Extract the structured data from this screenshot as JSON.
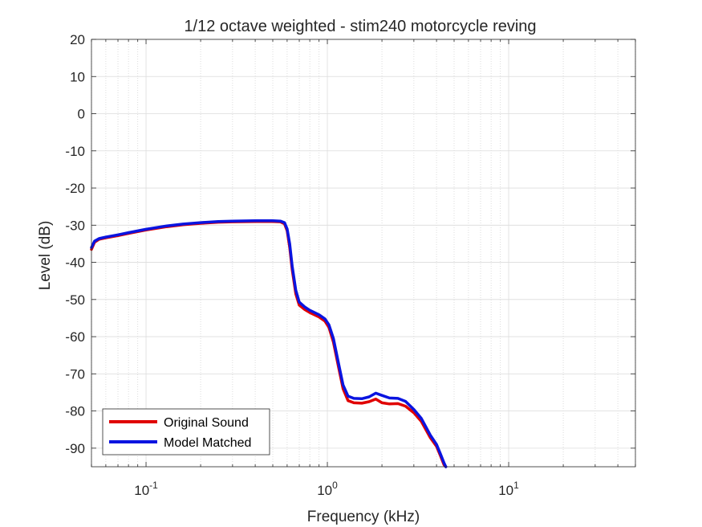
{
  "chart_data": {
    "type": "line",
    "title": "1/12 octave weighted - stim240 motorcycle reving",
    "xlabel": "Frequency (kHz)",
    "ylabel": "Level (dB)",
    "xscale": "log",
    "xlim": [
      0.05,
      50
    ],
    "ylim": [
      -95,
      20
    ],
    "grid": true,
    "minor_grid": true,
    "legend_location": "bottom-left",
    "yticks": [
      20,
      10,
      0,
      -10,
      -20,
      -30,
      -40,
      -50,
      -60,
      -70,
      -80,
      -90
    ],
    "xticks": [
      {
        "value": 0.1,
        "base": "10",
        "exp": "-1"
      },
      {
        "value": 1,
        "base": "10",
        "exp": "0"
      },
      {
        "value": 10,
        "base": "10",
        "exp": "1"
      }
    ],
    "series": [
      {
        "name": "Original Sound",
        "color": "#e00000",
        "points": [
          [
            0.05,
            -36.5
          ],
          [
            0.052,
            -34.6
          ],
          [
            0.055,
            -33.8
          ],
          [
            0.06,
            -33.4
          ],
          [
            0.07,
            -32.8
          ],
          [
            0.08,
            -32.2
          ],
          [
            0.1,
            -31.3
          ],
          [
            0.13,
            -30.4
          ],
          [
            0.16,
            -29.9
          ],
          [
            0.2,
            -29.5
          ],
          [
            0.25,
            -29.2
          ],
          [
            0.3,
            -29.1
          ],
          [
            0.4,
            -29.0
          ],
          [
            0.5,
            -29.0
          ],
          [
            0.55,
            -29.1
          ],
          [
            0.58,
            -29.6
          ],
          [
            0.6,
            -31.5
          ],
          [
            0.62,
            -36.0
          ],
          [
            0.64,
            -42.0
          ],
          [
            0.67,
            -48.5
          ],
          [
            0.7,
            -51.5
          ],
          [
            0.75,
            -52.7
          ],
          [
            0.8,
            -53.5
          ],
          [
            0.9,
            -54.7
          ],
          [
            0.97,
            -55.8
          ],
          [
            1.02,
            -57.5
          ],
          [
            1.08,
            -61.5
          ],
          [
            1.15,
            -68.0
          ],
          [
            1.22,
            -74.0
          ],
          [
            1.3,
            -77.2
          ],
          [
            1.4,
            -77.8
          ],
          [
            1.55,
            -77.9
          ],
          [
            1.7,
            -77.5
          ],
          [
            1.85,
            -76.8
          ],
          [
            2.0,
            -77.8
          ],
          [
            2.2,
            -78.1
          ],
          [
            2.45,
            -78.0
          ],
          [
            2.7,
            -78.7
          ],
          [
            3.0,
            -80.5
          ],
          [
            3.3,
            -82.8
          ],
          [
            3.7,
            -87.2
          ],
          [
            4.0,
            -89.5
          ],
          [
            4.2,
            -92.0
          ],
          [
            4.4,
            -94.5
          ],
          [
            4.5,
            -95.0
          ]
        ]
      },
      {
        "name": "Model Matched",
        "color": "#0a14e0",
        "points": [
          [
            0.05,
            -36.0
          ],
          [
            0.052,
            -34.3
          ],
          [
            0.055,
            -33.6
          ],
          [
            0.06,
            -33.2
          ],
          [
            0.07,
            -32.6
          ],
          [
            0.08,
            -32.0
          ],
          [
            0.1,
            -31.1
          ],
          [
            0.13,
            -30.2
          ],
          [
            0.16,
            -29.7
          ],
          [
            0.2,
            -29.3
          ],
          [
            0.25,
            -29.0
          ],
          [
            0.3,
            -28.9
          ],
          [
            0.4,
            -28.8
          ],
          [
            0.5,
            -28.8
          ],
          [
            0.55,
            -28.9
          ],
          [
            0.58,
            -29.3
          ],
          [
            0.6,
            -31.0
          ],
          [
            0.62,
            -35.0
          ],
          [
            0.64,
            -41.0
          ],
          [
            0.67,
            -47.5
          ],
          [
            0.7,
            -50.7
          ],
          [
            0.75,
            -52.0
          ],
          [
            0.8,
            -52.9
          ],
          [
            0.9,
            -54.1
          ],
          [
            0.97,
            -55.2
          ],
          [
            1.02,
            -56.8
          ],
          [
            1.08,
            -60.5
          ],
          [
            1.15,
            -67.0
          ],
          [
            1.22,
            -73.0
          ],
          [
            1.3,
            -76.0
          ],
          [
            1.4,
            -76.6
          ],
          [
            1.55,
            -76.7
          ],
          [
            1.7,
            -76.2
          ],
          [
            1.85,
            -75.2
          ],
          [
            2.0,
            -75.8
          ],
          [
            2.2,
            -76.5
          ],
          [
            2.45,
            -76.6
          ],
          [
            2.7,
            -77.4
          ],
          [
            3.0,
            -79.6
          ],
          [
            3.3,
            -82.0
          ],
          [
            3.7,
            -86.5
          ],
          [
            4.0,
            -89.0
          ],
          [
            4.2,
            -91.5
          ],
          [
            4.4,
            -94.0
          ],
          [
            4.5,
            -95.0
          ]
        ]
      }
    ]
  }
}
